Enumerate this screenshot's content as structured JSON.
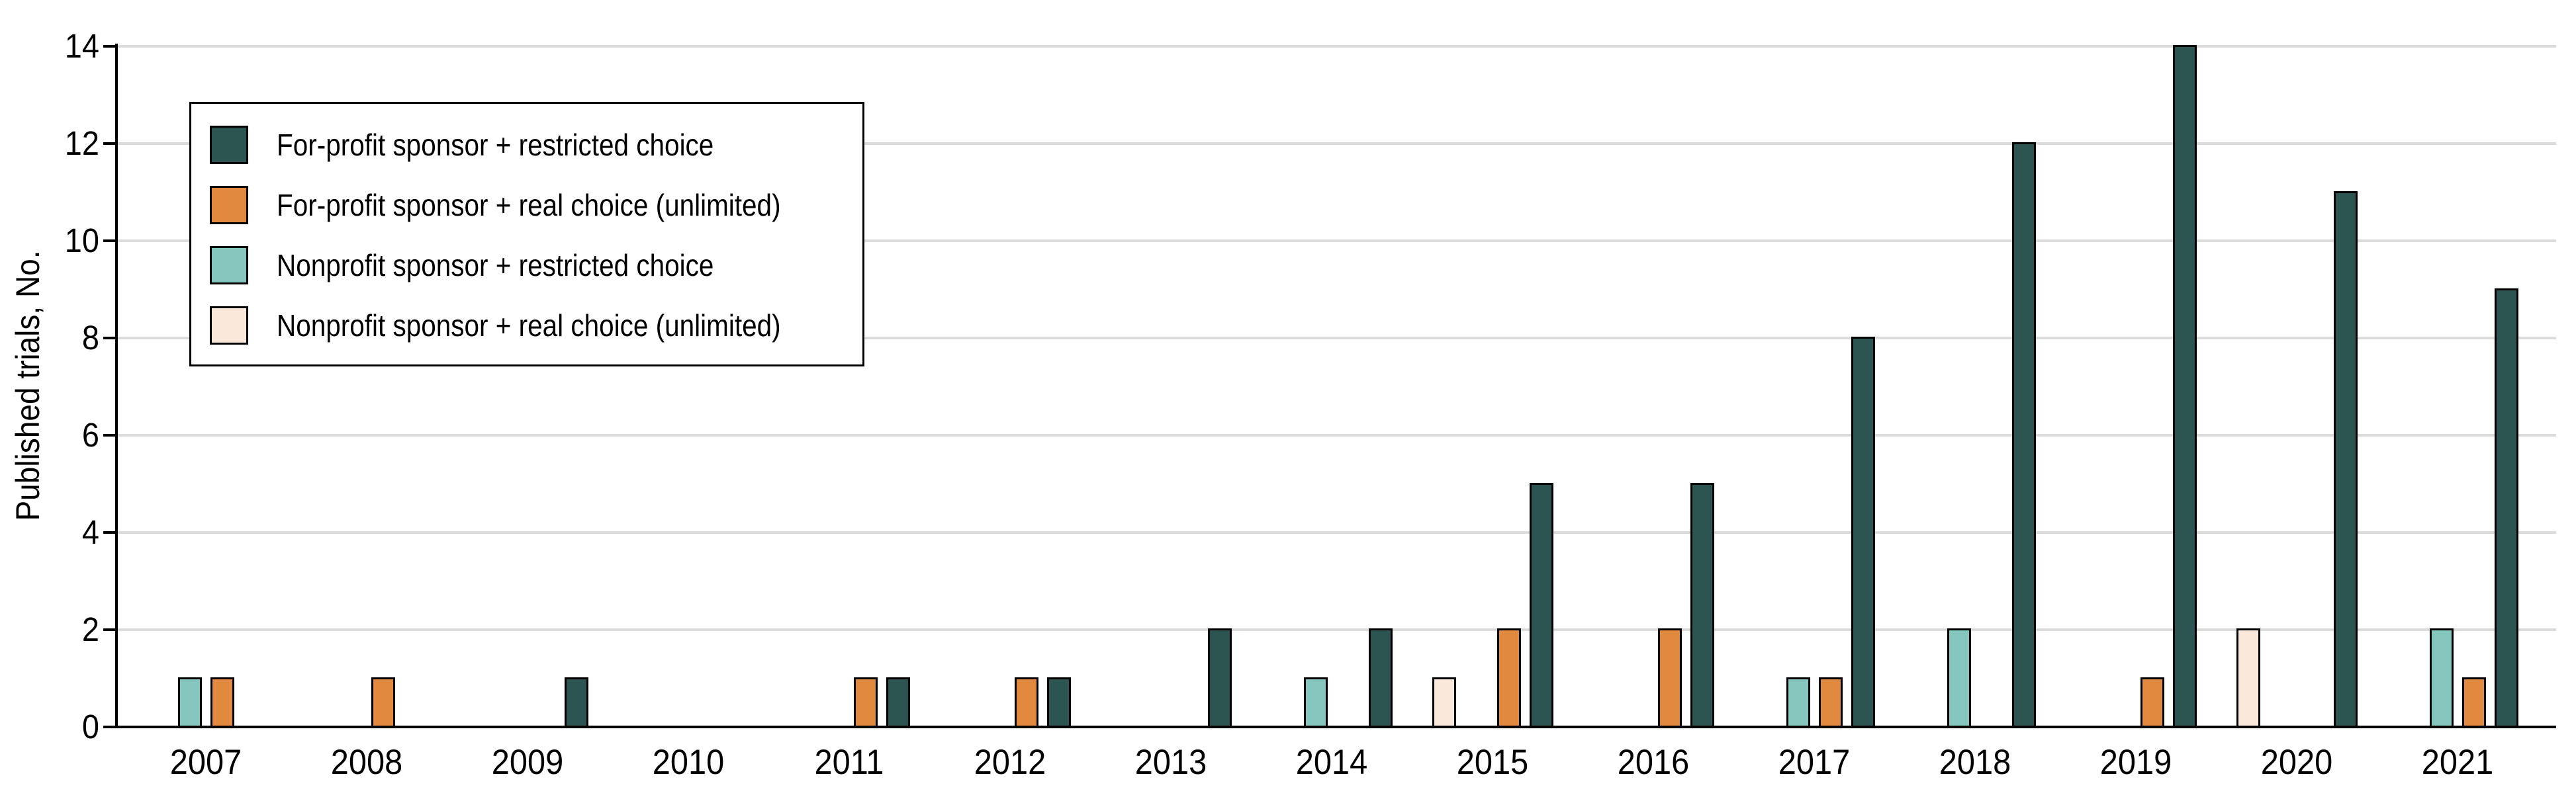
{
  "chart_data": {
    "type": "bar",
    "title": "",
    "ylabel": "Published trials, No.",
    "xlabel": "",
    "categories": [
      "2007",
      "2008",
      "2009",
      "2010",
      "2011",
      "2012",
      "2013",
      "2014",
      "2015",
      "2016",
      "2017",
      "2018",
      "2019",
      "2020",
      "2021"
    ],
    "ylim": [
      0,
      14
    ],
    "yticks": [
      0,
      2,
      4,
      6,
      8,
      10,
      12,
      14
    ],
    "grid": "horizontal",
    "legend_position": "top-left-inside",
    "series": [
      {
        "name": "For-profit sponsor + restricted choice",
        "color": "#2C5450",
        "slot": 3,
        "values": [
          0,
          0,
          1,
          0,
          1,
          1,
          2,
          2,
          5,
          5,
          8,
          12,
          14,
          11,
          9
        ]
      },
      {
        "name": "For-profit sponsor + real choice (unlimited)",
        "color": "#E1893E",
        "slot": 2,
        "values": [
          1,
          1,
          0,
          0,
          1,
          1,
          0,
          0,
          2,
          2,
          1,
          0,
          1,
          0,
          1
        ]
      },
      {
        "name": "Nonprofit sponsor + restricted choice",
        "color": "#85C6BF",
        "slot": 1,
        "values": [
          1,
          0,
          0,
          0,
          0,
          0,
          0,
          1,
          0,
          0,
          1,
          2,
          0,
          0,
          2
        ]
      },
      {
        "name": "Nonprofit sponsor + real choice (unlimited)",
        "color": "#FAE8DB",
        "slot": 0,
        "values": [
          0,
          0,
          0,
          0,
          0,
          0,
          0,
          0,
          1,
          0,
          0,
          0,
          0,
          2,
          0
        ]
      }
    ],
    "colors": {
      "gridline": "#DBDBDB",
      "axis": "#000000",
      "bar_outline": "#000000",
      "background": "#FFFFFF"
    }
  }
}
